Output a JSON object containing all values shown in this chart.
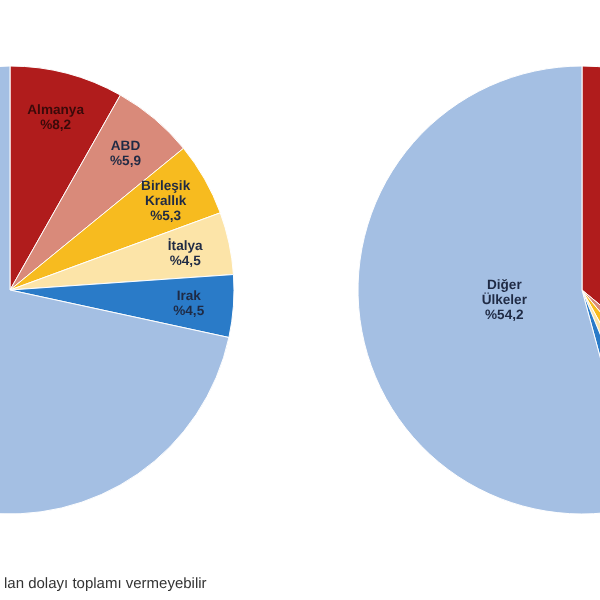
{
  "chart_data": [
    {
      "type": "pie",
      "categories": [
        "Almanya",
        "ABD",
        "Birleşik Krallık",
        "İtalya",
        "Irak",
        null
      ],
      "values": [
        8.2,
        5.9,
        5.3,
        4.5,
        4.5,
        71.6
      ],
      "value_labels": [
        "%8,2",
        "%5,9",
        "%5,3",
        "%4,5",
        "%4,5",
        null
      ],
      "colors": [
        "#b01c1c",
        "#d98a7a",
        "#f7bb1f",
        "#fce4a8",
        "#2a7bc8",
        "#a4bfe3"
      ],
      "annotations": [
        "lan dolayı toplamı vermeyebilir"
      ]
    },
    {
      "type": "pie",
      "categories": [
        null,
        null,
        null,
        null,
        null,
        "Diğer Ülkeler"
      ],
      "values": [
        36,
        3,
        3,
        1.8,
        2,
        54.2
      ],
      "value_labels": [
        null,
        null,
        null,
        null,
        null,
        "%54,2"
      ],
      "colors": [
        "#b01c1c",
        "#d98a7a",
        "#f7bb1f",
        "#fce4a8",
        "#2a7bc8",
        "#a4bfe3"
      ]
    }
  ]
}
